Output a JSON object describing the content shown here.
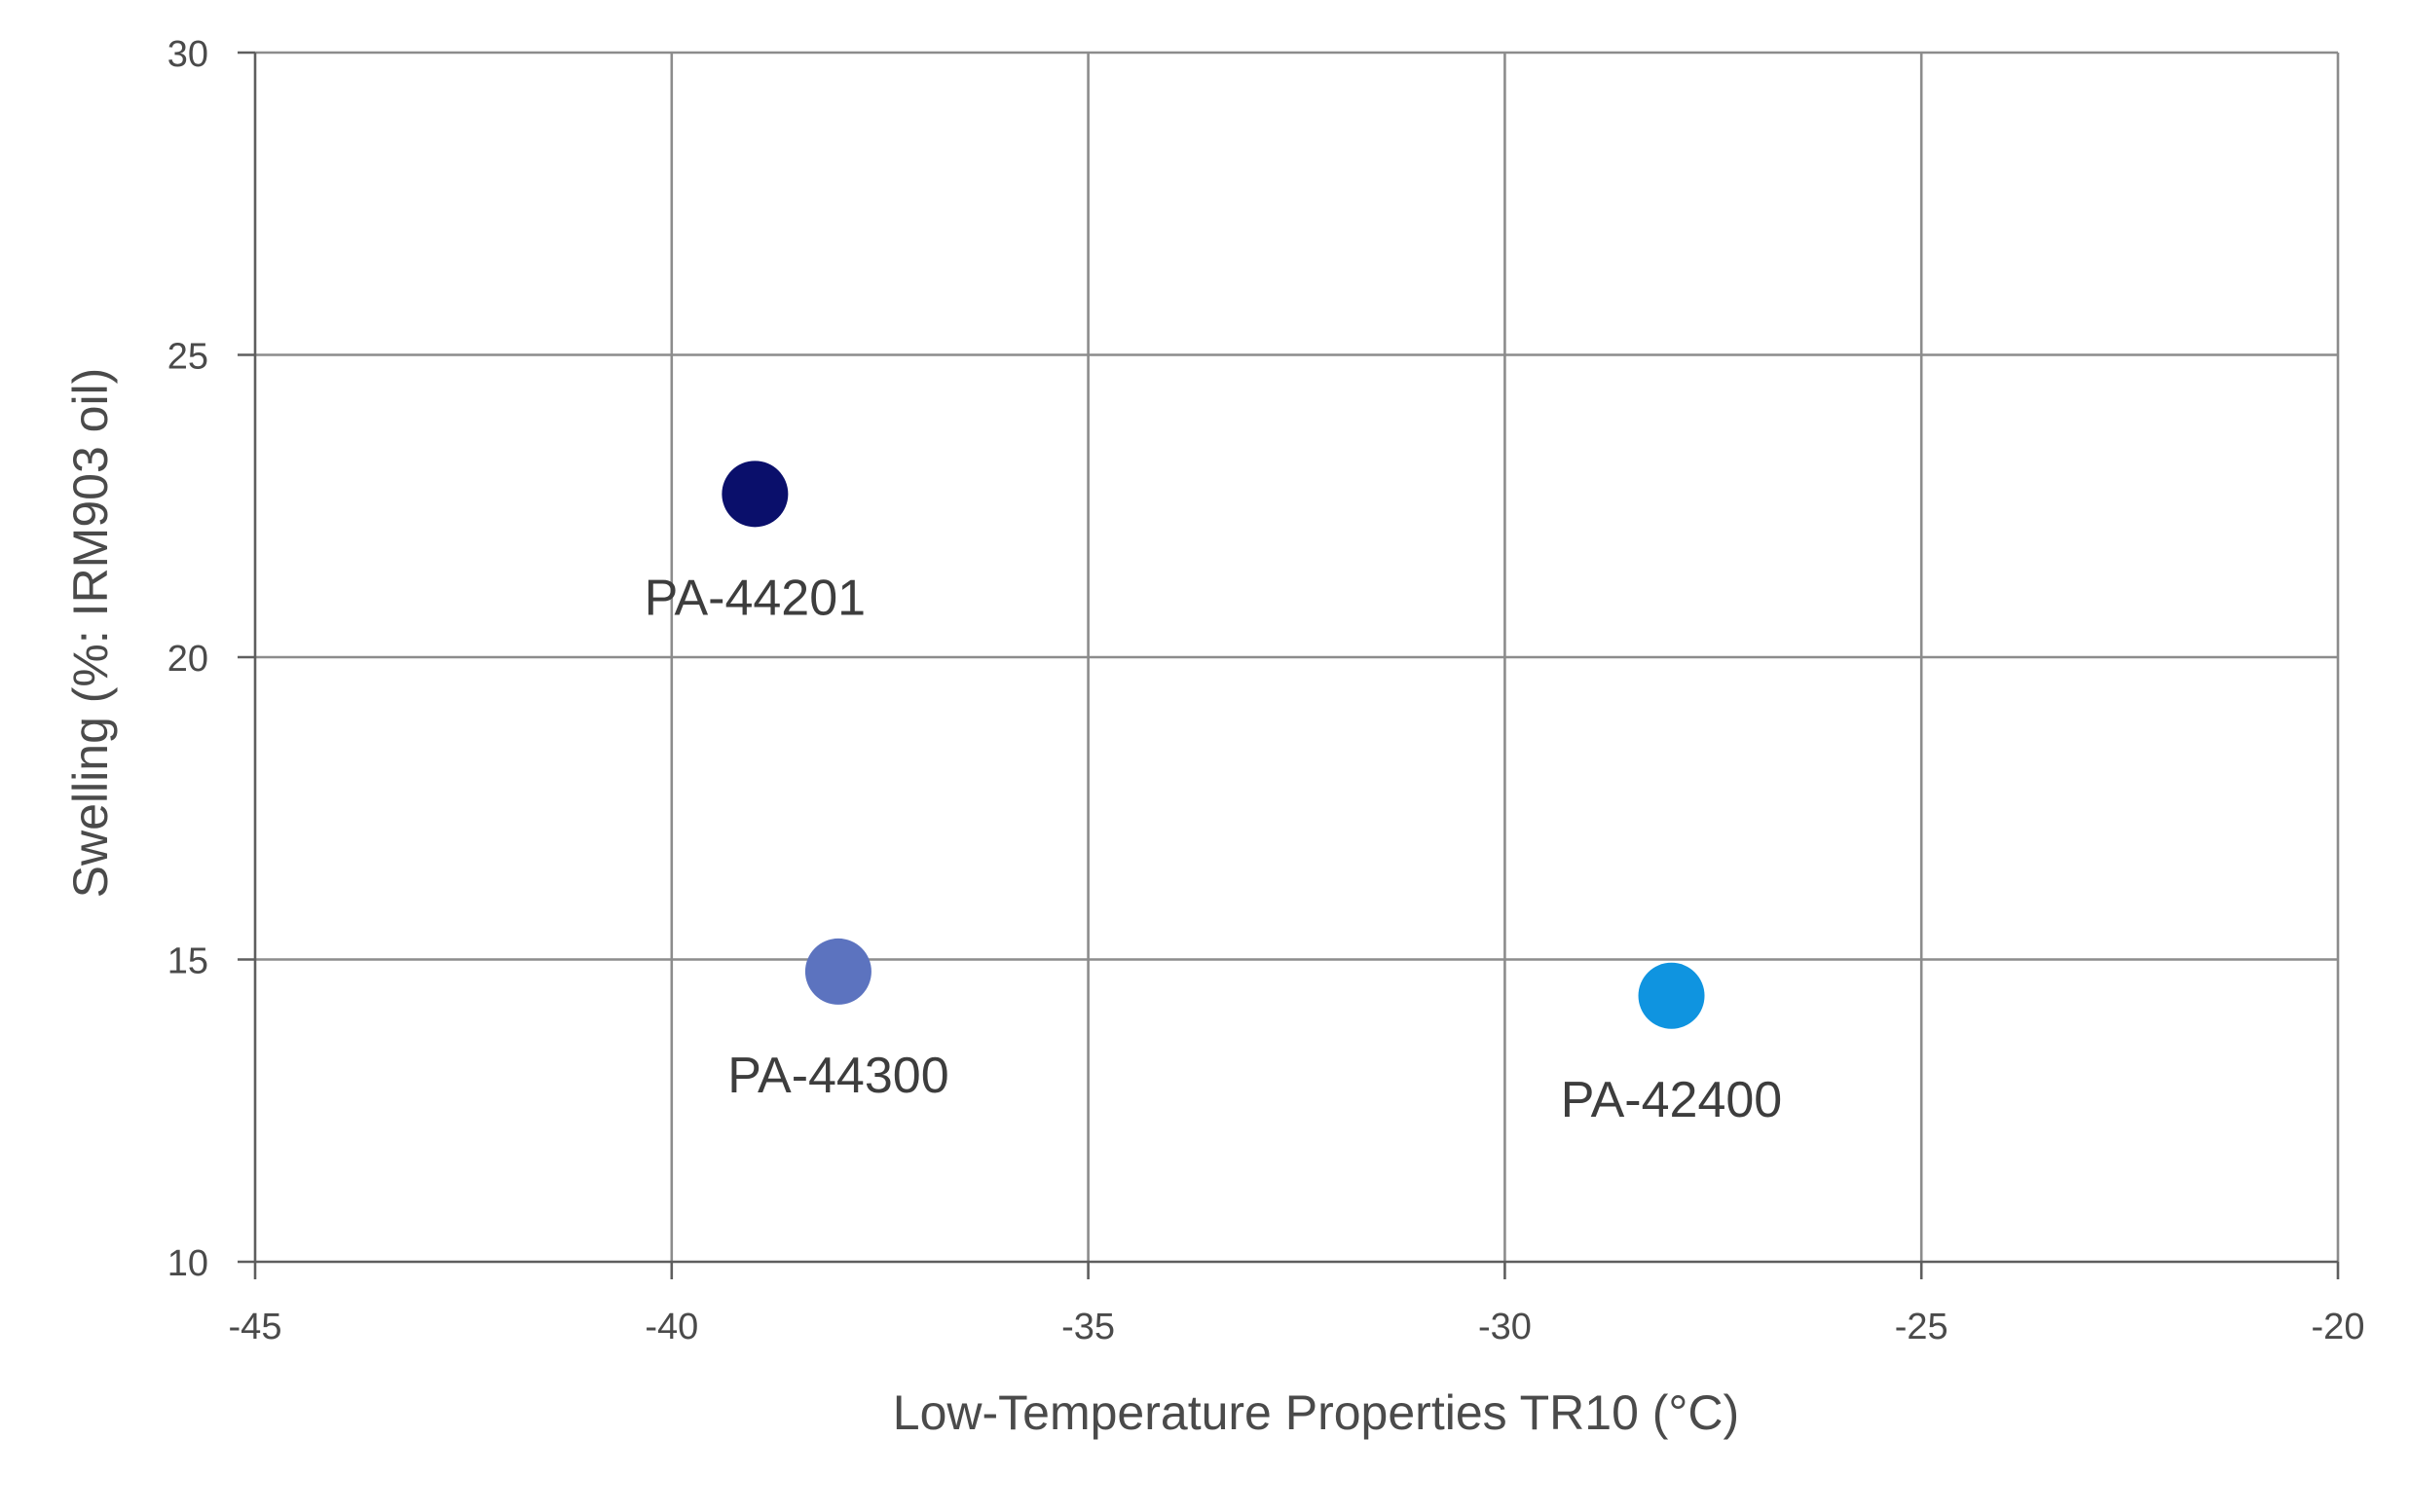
{
  "chart_data": {
    "type": "scatter",
    "title": "",
    "xlabel": "Low-Temperature Properties TR10 (°C)",
    "ylabel": "Swelling (%: IRM903 oil)",
    "xlim": [
      -45,
      -20
    ],
    "ylim": [
      10,
      30
    ],
    "xticks": [
      -45,
      -40,
      -35,
      -30,
      -25,
      -20
    ],
    "yticks": [
      10,
      15,
      20,
      25,
      30
    ],
    "grid": true,
    "legend": "none",
    "series": [
      {
        "name": "PA-44201",
        "x": -39,
        "y": 22.7,
        "color": "#0a0f6b",
        "label_position": "below"
      },
      {
        "name": "PA-44300",
        "x": -38,
        "y": 14.8,
        "color": "#5c73bf",
        "label_position": "below"
      },
      {
        "name": "PA-42400",
        "x": -28,
        "y": 14.4,
        "color": "#0f94e0",
        "label_position": "below"
      }
    ]
  }
}
